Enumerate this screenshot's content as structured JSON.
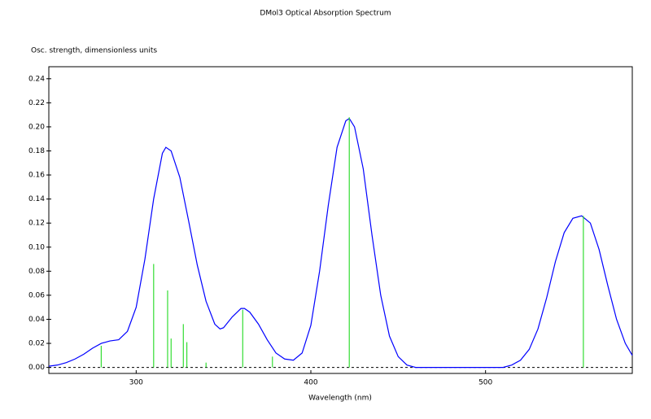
{
  "chart_data": {
    "type": "line",
    "title": "DMol3 Optical Absorption Spectrum",
    "y_label": "Osc. strength, dimensionless units",
    "x_label": "Wavelength (nm)",
    "xlim": [
      250,
      584
    ],
    "ylim": [
      -0.005,
      0.25
    ],
    "xticks": [
      300,
      400,
      500
    ],
    "yticks": [
      {
        "value": 0,
        "label": "0.00"
      },
      {
        "value": 0.02,
        "label": "0.02"
      },
      {
        "value": 0.04,
        "label": "0.04"
      },
      {
        "value": 0.06,
        "label": "0.06"
      },
      {
        "value": 0.08,
        "label": "0.08"
      },
      {
        "value": 0.1,
        "label": "0.10"
      },
      {
        "value": 0.12,
        "label": "0.12"
      },
      {
        "value": 0.14,
        "label": "0.14"
      },
      {
        "value": 0.16,
        "label": "0.16"
      },
      {
        "value": 0.18,
        "label": "0.18"
      },
      {
        "value": 0.2,
        "label": "0.20"
      },
      {
        "value": 0.22,
        "label": "0.22"
      },
      {
        "value": 0.24,
        "label": "0.24"
      }
    ],
    "series": [
      {
        "type": "line",
        "color": "#0000ff",
        "x": [
          250,
          255,
          260,
          265,
          270,
          275,
          280,
          285,
          290,
          295,
          300,
          305,
          310,
          315,
          317,
          320,
          325,
          330,
          335,
          340,
          345,
          348,
          350,
          355,
          360,
          362,
          365,
          370,
          375,
          380,
          385,
          390,
          395,
          400,
          405,
          410,
          415,
          420,
          422,
          425,
          430,
          435,
          440,
          445,
          450,
          455,
          460,
          470,
          480,
          490,
          500,
          510,
          515,
          520,
          525,
          530,
          535,
          540,
          545,
          550,
          555,
          560,
          565,
          570,
          575,
          580,
          584
        ],
        "values": [
          0.001,
          0.002,
          0.004,
          0.007,
          0.011,
          0.016,
          0.02,
          0.022,
          0.023,
          0.03,
          0.05,
          0.09,
          0.14,
          0.178,
          0.183,
          0.18,
          0.158,
          0.122,
          0.085,
          0.055,
          0.036,
          0.032,
          0.033,
          0.042,
          0.049,
          0.049,
          0.046,
          0.036,
          0.023,
          0.012,
          0.007,
          0.006,
          0.012,
          0.035,
          0.08,
          0.135,
          0.183,
          0.205,
          0.207,
          0.2,
          0.165,
          0.11,
          0.06,
          0.026,
          0.009,
          0.002,
          0,
          0,
          0,
          0,
          0,
          0,
          0.002,
          0.006,
          0.015,
          0.032,
          0.058,
          0.088,
          0.112,
          0.124,
          0.126,
          0.12,
          0.098,
          0.068,
          0.04,
          0.02,
          0.01
        ]
      },
      {
        "type": "stick",
        "color": "#33dd33",
        "x": [
          280,
          310,
          318,
          320,
          327,
          329,
          340,
          361,
          378,
          422,
          556
        ],
        "values": [
          0.018,
          0.086,
          0.064,
          0.024,
          0.036,
          0.021,
          0.004,
          0.048,
          0.009,
          0.208,
          0.126
        ]
      }
    ]
  }
}
